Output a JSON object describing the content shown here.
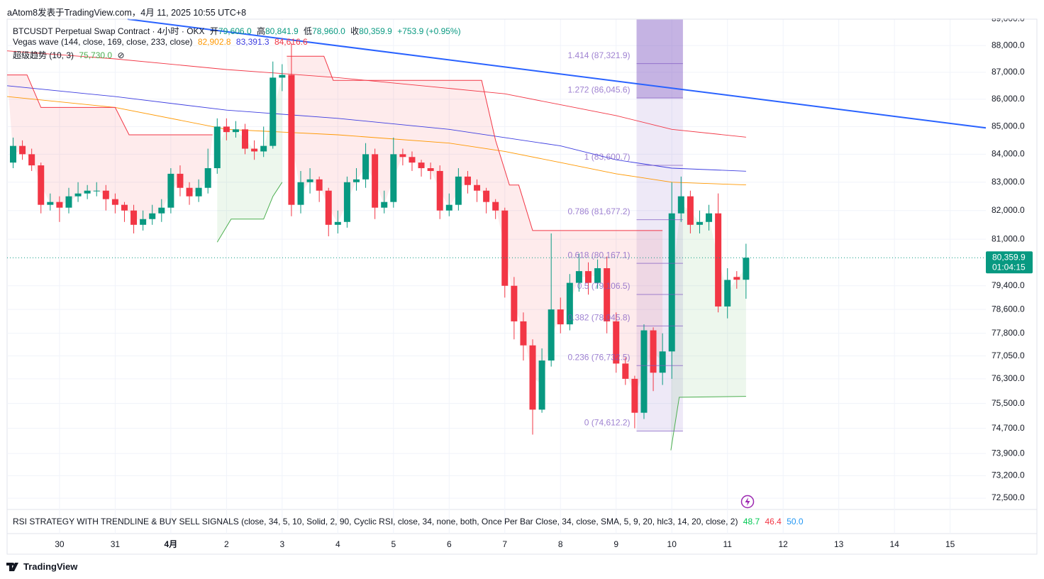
{
  "header": {
    "attribution": "aAtom8发表于TradingView.com，4月 11, 2025 10:55 UTC+8"
  },
  "chart_data": {
    "type": "candlestick",
    "symbol": "BTCUSDT Perpetual Swap Contract · 4小时 · OKX",
    "ohlc_legend": [
      {
        "label": "开",
        "value": "79,606.0"
      },
      {
        "label": "高",
        "value": "80,841.9"
      },
      {
        "label": "低",
        "value": "78,960.0"
      },
      {
        "label": "收",
        "value": "80,359.9"
      }
    ],
    "change": "+753.9 (+0.95%)",
    "up_color": "#089981",
    "down_color": "#f23645",
    "x": [
      -5,
      -4,
      -3,
      -2,
      -1,
      0,
      1,
      2,
      3,
      4,
      5,
      6,
      7,
      8,
      9,
      10,
      11,
      12,
      13,
      14,
      15,
      16,
      17,
      18,
      19,
      20,
      21,
      22,
      23,
      24,
      25,
      26,
      27,
      28,
      29,
      30,
      31,
      32,
      33,
      34,
      35,
      36,
      37,
      38,
      39,
      40,
      41,
      42,
      43,
      44,
      45,
      46,
      47,
      48,
      49,
      50,
      51,
      52,
      53,
      54,
      55,
      56,
      57,
      58,
      59,
      60,
      61,
      62,
      63,
      64,
      65,
      66,
      67,
      68,
      69,
      70,
      71,
      72,
      73,
      74
    ],
    "open": [
      83700,
      84300,
      84000,
      83600,
      82200,
      82300,
      82100,
      82500,
      82600,
      82700,
      82700,
      82400,
      82200,
      82000,
      81500,
      81700,
      81900,
      82100,
      83300,
      82800,
      82500,
      82800,
      83500,
      85000,
      84800,
      84900,
      84200,
      84100,
      84300,
      86800,
      86900,
      82200,
      83000,
      83100,
      82700,
      81500,
      81600,
      83000,
      83100,
      84000,
      82100,
      82300,
      84000,
      83900,
      83700,
      83500,
      83400,
      82000,
      82200,
      83200,
      82900,
      82700,
      82300,
      82000,
      79400,
      78200,
      77400,
      75300,
      76900,
      78600,
      78100,
      79500,
      79900,
      79500,
      80000,
      78200,
      76800,
      76300,
      75200,
      77900,
      76500,
      77200,
      81900,
      82500,
      81500,
      81600,
      81900,
      78700,
      79700,
      79606.0
    ],
    "high": [
      84600,
      84500,
      84200,
      83700,
      82600,
      82500,
      82800,
      83000,
      82900,
      83000,
      82900,
      82600,
      82300,
      82200,
      82000,
      82200,
      82400,
      83500,
      83600,
      83000,
      83100,
      84200,
      85300,
      85300,
      85200,
      85100,
      84500,
      85000,
      87400,
      87300,
      88100,
      83400,
      83500,
      83200,
      82800,
      82000,
      83200,
      83500,
      84400,
      84200,
      82700,
      84600,
      84200,
      84100,
      83800,
      83700,
      83600,
      82600,
      83500,
      83400,
      83100,
      82800,
      82400,
      82100,
      79700,
      78500,
      77600,
      77300,
      81200,
      79000,
      79800,
      80500,
      80200,
      80300,
      80400,
      78500,
      77000,
      76400,
      78100,
      78000,
      77800,
      83000,
      83200,
      82700,
      82000,
      82200,
      82600,
      80000,
      79900,
      80841.9
    ],
    "low": [
      83500,
      83800,
      83400,
      81900,
      82000,
      81600,
      81900,
      82300,
      82400,
      82500,
      82000,
      81900,
      81600,
      81200,
      81300,
      81500,
      81600,
      81900,
      82500,
      82200,
      82300,
      82600,
      83300,
      84500,
      84600,
      84000,
      83800,
      83900,
      84200,
      86300,
      81800,
      81900,
      82600,
      82300,
      81100,
      81200,
      81400,
      82700,
      82800,
      81700,
      81900,
      82100,
      83600,
      83400,
      83200,
      83100,
      81700,
      81800,
      82000,
      82600,
      82300,
      81900,
      81700,
      79000,
      77600,
      76900,
      74500,
      75200,
      76700,
      77800,
      77900,
      79200,
      79100,
      79300,
      77800,
      76500,
      76100,
      74700,
      75000,
      75900,
      76100,
      76300,
      81600,
      81200,
      81200,
      81300,
      78500,
      78300,
      79300,
      78960.0
    ],
    "close": [
      84300,
      84000,
      83600,
      82200,
      82300,
      82100,
      82500,
      82600,
      82700,
      82700,
      82400,
      82200,
      82000,
      81500,
      81700,
      81900,
      82100,
      83300,
      82800,
      82500,
      82800,
      83500,
      85000,
      84800,
      84900,
      84200,
      84100,
      84300,
      86800,
      86900,
      82200,
      83000,
      83100,
      82700,
      81500,
      81600,
      83000,
      83100,
      84000,
      82100,
      82300,
      84000,
      83900,
      83700,
      83500,
      83400,
      82000,
      82200,
      83200,
      82900,
      82700,
      82300,
      82000,
      79400,
      78200,
      77400,
      75300,
      76900,
      78600,
      78100,
      79500,
      79900,
      79500,
      80000,
      78200,
      76800,
      76300,
      75200,
      77900,
      76500,
      77200,
      81900,
      82500,
      81500,
      81600,
      81900,
      78700,
      79600,
      79606.0,
      80359.9
    ],
    "xlim": [
      -5.65,
      99.85
    ],
    "xticks": [
      {
        "value": 0,
        "label": "30"
      },
      {
        "value": 6,
        "label": "31"
      },
      {
        "value": 12,
        "label": "4月"
      },
      {
        "value": 18,
        "label": "2"
      },
      {
        "value": 24,
        "label": "3"
      },
      {
        "value": 30,
        "label": "4"
      },
      {
        "value": 36,
        "label": "5"
      },
      {
        "value": 42,
        "label": "6"
      },
      {
        "value": 48,
        "label": "7"
      },
      {
        "value": 54,
        "label": "8"
      },
      {
        "value": 60,
        "label": "9"
      },
      {
        "value": 66,
        "label": "10"
      },
      {
        "value": 72,
        "label": "11"
      },
      {
        "value": 78,
        "label": "12"
      },
      {
        "value": 84,
        "label": "13"
      },
      {
        "value": 90,
        "label": "14"
      },
      {
        "value": 96,
        "label": "15"
      }
    ],
    "ylim": [
      72150,
      89000
    ],
    "log_scale": true,
    "yticks": [
      {
        "value": 89000,
        "label": "89,000.0"
      },
      {
        "value": 88000,
        "label": "88,000.0"
      },
      {
        "value": 87000,
        "label": "87,000.0"
      },
      {
        "value": 86000,
        "label": "86,000.0"
      },
      {
        "value": 85000,
        "label": "85,000.0"
      },
      {
        "value": 84000,
        "label": "84,000.0"
      },
      {
        "value": 83000,
        "label": "83,000.0"
      },
      {
        "value": 82000,
        "label": "82,000.0"
      },
      {
        "value": 81000,
        "label": "81,000.0"
      },
      {
        "value": 79400,
        "label": "79,400.0"
      },
      {
        "value": 78600,
        "label": "78,600.0"
      },
      {
        "value": 77800,
        "label": "77,800.0"
      },
      {
        "value": 77050,
        "label": "77,050.0"
      },
      {
        "value": 76300,
        "label": "76,300.0"
      },
      {
        "value": 75500,
        "label": "75,500.0"
      },
      {
        "value": 74700,
        "label": "74,700.0"
      },
      {
        "value": 73900,
        "label": "73,900.0"
      },
      {
        "value": 73200,
        "label": "73,200.0"
      },
      {
        "value": 72500,
        "label": "72,500.0"
      }
    ],
    "grid": true,
    "vegas_wave": {
      "name": "Vegas wave (144, close, 169, close, 233, close)",
      "series": [
        {
          "color": "#ff9800",
          "value_label": "82,902.8",
          "x": [
            -5.65,
            6,
            18,
            30,
            42,
            48,
            54,
            60,
            66,
            74
          ],
          "values": [
            86100,
            85700,
            84900,
            84700,
            84400,
            84100,
            83700,
            83300,
            83000,
            82902.8
          ]
        },
        {
          "color": "#3d3de0",
          "value_label": "83,391.3",
          "x": [
            -5.65,
            6,
            18,
            30,
            42,
            48,
            54,
            60,
            66,
            74
          ],
          "values": [
            86500,
            86100,
            85600,
            85300,
            84900,
            84600,
            84300,
            83800,
            83500,
            83391.3
          ]
        },
        {
          "color": "#f23645",
          "value_label": "84,616.6",
          "x": [
            -5.65,
            6,
            18,
            30,
            42,
            48,
            54,
            60,
            66,
            74
          ],
          "values": [
            87800,
            87500,
            87100,
            86800,
            86400,
            86200,
            85800,
            85400,
            84900,
            84616.6
          ]
        }
      ]
    },
    "supertrend": {
      "name": "超级趋势 (10, 3)",
      "value_label": "75,730.0",
      "icon": "⊘",
      "series": [
        {
          "color": "#f23645",
          "x": [
            -5.65,
            -3.5,
            -2,
            6,
            7.5,
            16.5,
            17,
            24.5,
            28.5,
            29.5,
            45.5,
            47,
            48.5,
            49.5,
            51,
            65
          ],
          "values": [
            86900,
            86900,
            85700,
            85700,
            84700,
            84700,
            null,
            87600,
            87600,
            86700,
            86700,
            84500,
            82900,
            82900,
            81300,
            81300
          ]
        },
        {
          "color": "#4caf50",
          "x": [
            17,
            18.5,
            22,
            23,
            24,
            24.5,
            65.9,
            66.8,
            74
          ],
          "values": [
            80900,
            81700,
            81700,
            82500,
            83000,
            null,
            74000,
            75700,
            75730
          ]
        }
      ]
    },
    "trendline": {
      "color": "#2962ff",
      "x": [
        7.34,
        99.85
      ],
      "values": [
        89000,
        84950
      ]
    },
    "fibonacci": {
      "color": "#7e57c2",
      "x": [
        62.2,
        67.2
      ],
      "levels": [
        {
          "label": "1.414 (87,321.9)",
          "value": 87321.9
        },
        {
          "label": "1.272 (86,045.6)",
          "value": 86045.6
        },
        {
          "label": "1 (83,600.7)",
          "value": 83600.7
        },
        {
          "label": "0.786 (81,677.2)",
          "value": 81677.2
        },
        {
          "label": "0.618 (80,167.1)",
          "value": 80167.1
        },
        {
          "label": "0.5 (79,106.5)",
          "value": 79106.5
        },
        {
          "label": "0.382 (78,045.8)",
          "value": 78045.8
        },
        {
          "label": "0.236 (76,732.5)",
          "value": 76732.5
        },
        {
          "label": "0 (74,612.2)",
          "value": 74612.2
        }
      ]
    },
    "last_price": {
      "value": 80359.9,
      "label": "80,359.9",
      "countdown": "01:04:15",
      "color": "#089981"
    },
    "rsi_legend": {
      "title": "RSI STRATEGY WITH TRENDLINE & BUY SELL SIGNALS (close, 34, 5, 10, Solid, 2, 90, Cyclic RSI, close, 34, none, both, Once Per Bar Close, 34, close, SMA, 5, 9, 20, hlc3, 14, 20, close, 2)",
      "values": [
        {
          "label": "48.7",
          "color": "#00c853"
        },
        {
          "label": "46.4",
          "color": "#f23645"
        },
        {
          "label": "50.0",
          "color": "#2196f3"
        }
      ]
    }
  },
  "footer": {
    "brand": "TradingView"
  }
}
